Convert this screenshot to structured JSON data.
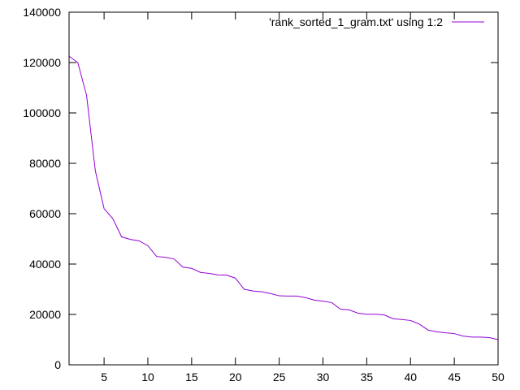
{
  "chart_data": {
    "type": "line",
    "title": "",
    "xlabel": "",
    "ylabel": "",
    "xlim": [
      1,
      50
    ],
    "ylim": [
      0,
      140000
    ],
    "grid": false,
    "legend_position": "top-right",
    "x_ticks": [
      5,
      10,
      15,
      20,
      25,
      30,
      35,
      40,
      45,
      50
    ],
    "x_tick_labels": [
      "5",
      "10",
      "15",
      "20",
      "25",
      "30",
      "35",
      "40",
      "45",
      "50"
    ],
    "y_ticks": [
      0,
      20000,
      40000,
      60000,
      80000,
      100000,
      120000,
      140000
    ],
    "y_tick_labels": [
      "0",
      "20000",
      "40000",
      "60000",
      "80000",
      "100000",
      "120000",
      "140000"
    ],
    "series": [
      {
        "name": "'rank_sorted_1_gram.txt' using 1:2",
        "color": "#9400d3",
        "x": [
          1,
          2,
          3,
          4,
          5,
          6,
          7,
          8,
          9,
          10,
          11,
          12,
          13,
          14,
          15,
          16,
          17,
          18,
          19,
          20,
          21,
          22,
          23,
          24,
          25,
          26,
          27,
          28,
          29,
          30,
          31,
          32,
          33,
          34,
          35,
          36,
          37,
          38,
          39,
          40,
          41,
          42,
          43,
          44,
          45,
          46,
          47,
          48,
          49,
          50
        ],
        "y": [
          122500,
          120000,
          107000,
          77000,
          62000,
          58000,
          50800,
          49800,
          49200,
          47300,
          43000,
          42700,
          42000,
          38800,
          38300,
          36700,
          36300,
          35700,
          35600,
          34400,
          30000,
          29300,
          29000,
          28300,
          27400,
          27300,
          27300,
          26700,
          25700,
          25300,
          24700,
          22100,
          21800,
          20500,
          20100,
          20100,
          19800,
          18300,
          18000,
          17600,
          16200,
          13800,
          13100,
          12700,
          12400,
          11400,
          11000,
          11000,
          10800,
          10000
        ]
      }
    ]
  }
}
